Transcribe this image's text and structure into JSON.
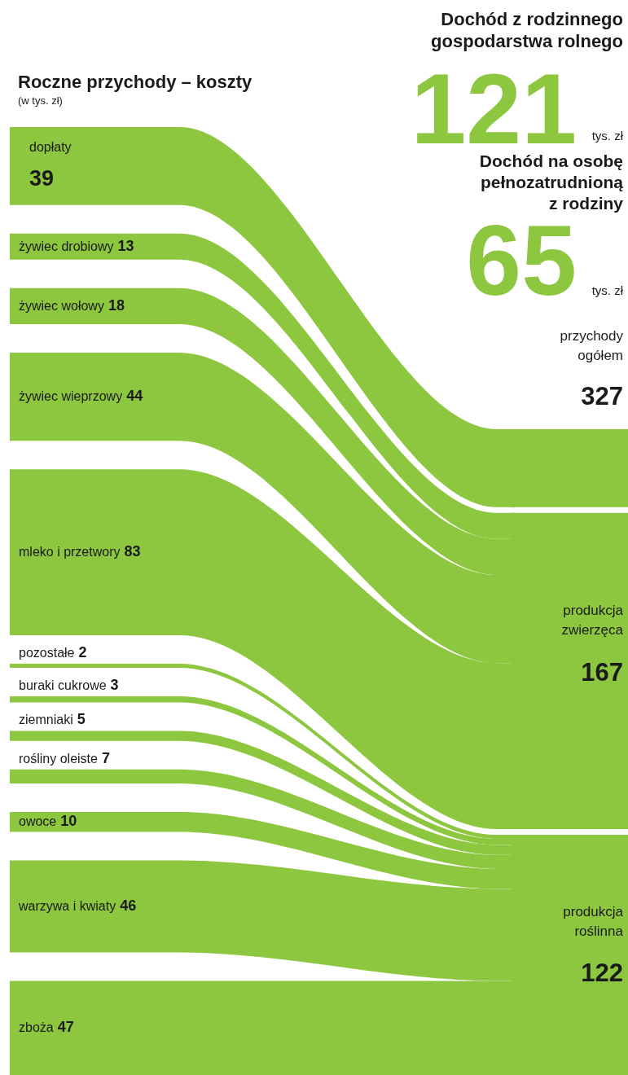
{
  "chart_data": {
    "type": "other",
    "title": "Roczne przychody – koszty",
    "subtitle": "(w tys. zł)",
    "categories": [
      "dopłaty",
      "żywiec drobiowy",
      "żywiec wołowy",
      "żywiec wieprzowy",
      "mleko i przetwory",
      "pozostałe",
      "buraki cukrowe",
      "ziemniaki",
      "rośliny oleiste",
      "owoce",
      "warzywa i kwiaty",
      "zboża"
    ],
    "series": [
      {
        "color": "#8dc63f",
        "values": [
          39,
          null,
          null,
          null,
          null,
          null,
          null,
          null,
          null,
          null,
          null,
          null
        ]
      },
      {
        "color": "#8dc63f",
        "values": [
          null,
          13,
          18,
          44,
          83,
          null,
          null,
          null,
          null,
          null,
          null,
          null
        ]
      },
      {
        "color": "#8dc63f",
        "values": [
          null,
          null,
          null,
          null,
          null,
          2,
          3,
          5,
          7,
          10,
          46,
          47
        ]
      }
    ],
    "data_labels": true,
    "annotations": [
      "Dochód z rodzinnego gospodarstwa rolnego",
      "121",
      "tys. zł",
      "Dochód na osobę pełnozatrudnioną z rodziny",
      "65",
      "tys. zł",
      "przychody ogółem",
      "327",
      "produkcja zwierzęca",
      "167",
      "produkcja roślinna",
      "122"
    ]
  }
}
